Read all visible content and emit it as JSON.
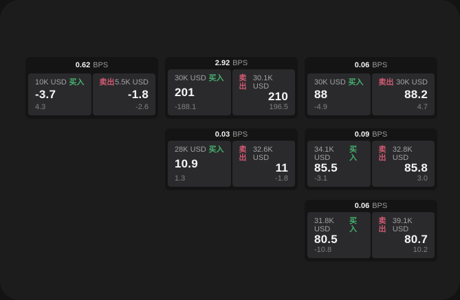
{
  "labels": {
    "bps": "BPS",
    "buy": "买入",
    "sell": "卖出"
  },
  "colors": {
    "buy": "#46b06e",
    "sell": "#d05a73",
    "window_bg": "#1c1c1d",
    "card_bg": "#141415",
    "panel_bg": "#2a2a2c"
  },
  "cards": [
    {
      "row": 1,
      "col": 1,
      "bps": "0.62",
      "buy": {
        "amount": "10K USD",
        "price": "-3.7",
        "delta": "4.3"
      },
      "sell": {
        "amount": "5.5K USD",
        "price": "-1.8",
        "delta": "-2.6"
      }
    },
    {
      "row": 1,
      "col": 2,
      "bps": "2.92",
      "buy": {
        "amount": "30K USD",
        "price": "201",
        "delta": "-188.1"
      },
      "sell": {
        "amount": "30.1K USD",
        "price": "210",
        "delta": "196.5"
      }
    },
    {
      "row": 1,
      "col": 3,
      "bps": "0.06",
      "buy": {
        "amount": "30K USD",
        "price": "88",
        "delta": "-4.9"
      },
      "sell": {
        "amount": "30K USD",
        "price": "88.2",
        "delta": "4.7"
      }
    },
    {
      "row": 2,
      "col": 2,
      "bps": "0.03",
      "buy": {
        "amount": "28K USD",
        "price": "10.9",
        "delta": "1.3"
      },
      "sell": {
        "amount": "32.6K USD",
        "price": "11",
        "delta": "-1.8"
      }
    },
    {
      "row": 2,
      "col": 3,
      "bps": "0.09",
      "buy": {
        "amount": "34.1K USD",
        "price": "85.5",
        "delta": "-3.1"
      },
      "sell": {
        "amount": "32.8K USD",
        "price": "85.8",
        "delta": "3.0"
      }
    },
    {
      "row": 3,
      "col": 3,
      "bps": "0.06",
      "buy": {
        "amount": "31.8K USD",
        "price": "80.5",
        "delta": "-10.8"
      },
      "sell": {
        "amount": "39.1K USD",
        "price": "80.7",
        "delta": "10.2"
      }
    }
  ]
}
